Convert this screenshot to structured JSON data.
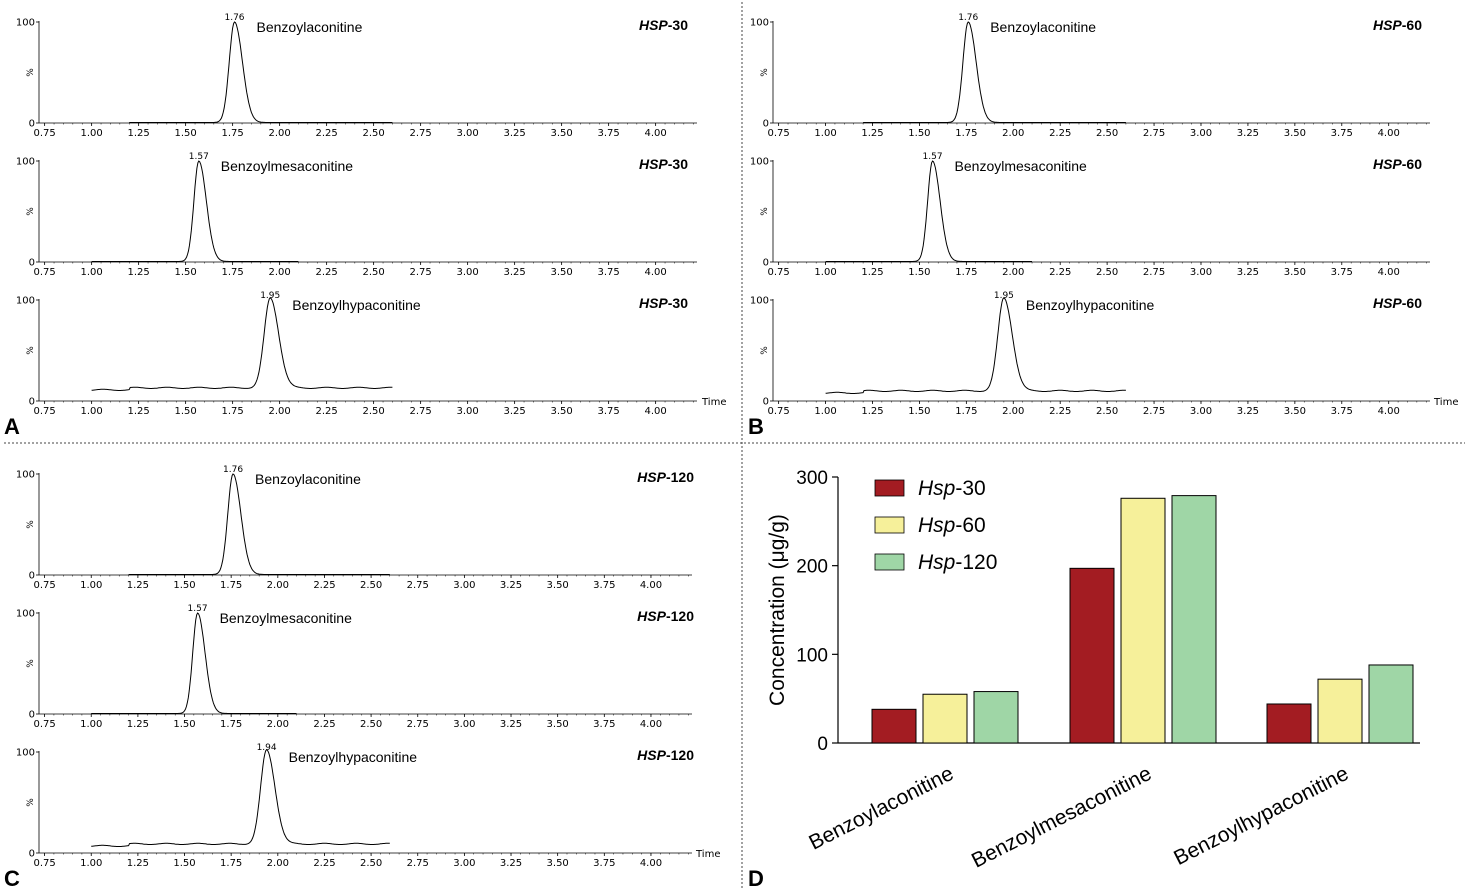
{
  "chromatogram_panels": [
    {
      "letter": "A",
      "sample": "HSP-30",
      "sample_prefix": "HSP",
      "sample_suffix": "-30",
      "traces": [
        {
          "compound": "Benzoylaconitine",
          "rt_label": "1.76",
          "rt": 1.76,
          "peak_max": 100,
          "baseline": 0.5,
          "x_range": [
            1.2,
            2.6
          ],
          "sigma_left": 0.028,
          "sigma_right": 0.042
        },
        {
          "compound": "Benzoylmesaconitine",
          "rt_label": "1.57",
          "rt": 1.57,
          "peak_max": 100,
          "baseline": 0.5,
          "x_range": [
            1.0,
            2.1
          ],
          "sigma_left": 0.026,
          "sigma_right": 0.04
        },
        {
          "compound": "Benzoylhypaconitine",
          "rt_label": "1.95",
          "rt": 1.95,
          "peak_max": 100,
          "baseline": 11,
          "x_range": [
            1.0,
            2.6
          ],
          "sigma_left": 0.032,
          "sigma_right": 0.045
        }
      ]
    },
    {
      "letter": "B",
      "sample": "HSP-60",
      "sample_prefix": "HSP",
      "sample_suffix": "-60",
      "traces": [
        {
          "compound": "Benzoylaconitine",
          "rt_label": "1.76",
          "rt": 1.76,
          "peak_max": 100,
          "baseline": 0.5,
          "x_range": [
            1.2,
            2.6
          ],
          "sigma_left": 0.028,
          "sigma_right": 0.042
        },
        {
          "compound": "Benzoylmesaconitine",
          "rt_label": "1.57",
          "rt": 1.57,
          "peak_max": 100,
          "baseline": 0.5,
          "x_range": [
            1.0,
            2.1
          ],
          "sigma_left": 0.026,
          "sigma_right": 0.04
        },
        {
          "compound": "Benzoylhypaconitine",
          "rt_label": "1.95",
          "rt": 1.95,
          "peak_max": 100,
          "baseline": 8,
          "x_range": [
            1.0,
            2.6
          ],
          "sigma_left": 0.032,
          "sigma_right": 0.045
        }
      ]
    },
    {
      "letter": "C",
      "sample": "HSP-120",
      "sample_prefix": "HSP",
      "sample_suffix": "-120",
      "traces": [
        {
          "compound": "Benzoylaconitine",
          "rt_label": "1.76",
          "rt": 1.76,
          "peak_max": 100,
          "baseline": 0.5,
          "x_range": [
            1.2,
            2.6
          ],
          "sigma_left": 0.028,
          "sigma_right": 0.042
        },
        {
          "compound": "Benzoylmesaconitine",
          "rt_label": "1.57",
          "rt": 1.57,
          "peak_max": 100,
          "baseline": 0.5,
          "x_range": [
            1.0,
            2.1
          ],
          "sigma_left": 0.026,
          "sigma_right": 0.04
        },
        {
          "compound": "Benzoylhypaconitine",
          "rt_label": "1.94",
          "rt": 1.94,
          "peak_max": 100,
          "baseline": 7,
          "x_range": [
            1.0,
            2.6
          ],
          "sigma_left": 0.032,
          "sigma_right": 0.045
        }
      ]
    }
  ],
  "chromatogram_axis": {
    "x_ticks": [
      "0.75",
      "1.00",
      "1.25",
      "1.50",
      "1.75",
      "2.00",
      "2.25",
      "2.50",
      "2.75",
      "3.00",
      "3.25",
      "3.50",
      "3.75",
      "4.00"
    ],
    "x_range": [
      0.72,
      4.22
    ],
    "y_ticks": [
      "0",
      "100"
    ],
    "y_unit": "%",
    "x_label": "Time"
  },
  "bar_panel": {
    "letter": "D"
  },
  "chart_data": {
    "type": "bar",
    "title": "",
    "xlabel": "",
    "ylabel": "Concentration (μg/g)",
    "ylim": [
      0,
      300
    ],
    "yticks": [
      "0",
      "100",
      "200",
      "300"
    ],
    "categories": [
      "Benzoylaconitine",
      "Benzoylmesaconitine",
      "Benzoylhypaconitine"
    ],
    "series": [
      {
        "name": "Hsp-30",
        "name_prefix": "Hsp",
        "name_suffix": "-30",
        "color": "#a31c22",
        "values": [
          38,
          197,
          44
        ]
      },
      {
        "name": "Hsp-60",
        "name_prefix": "Hsp",
        "name_suffix": "-60",
        "color": "#f6f09a",
        "values": [
          55,
          276,
          72
        ]
      },
      {
        "name": "Hsp-120",
        "name_prefix": "Hsp",
        "name_suffix": "-120",
        "color": "#9fd6a6",
        "values": [
          58,
          279,
          88
        ]
      }
    ],
    "legend": "top-left"
  }
}
